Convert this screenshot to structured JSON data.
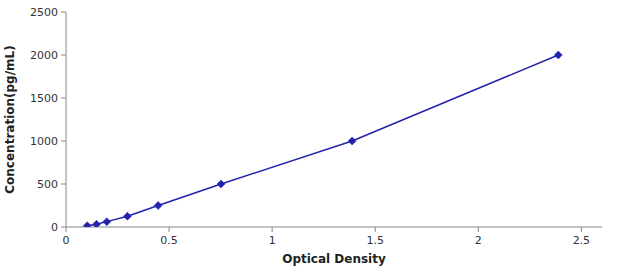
{
  "chart_data": {
    "type": "line",
    "x": [
      0.103,
      0.148,
      0.198,
      0.298,
      0.447,
      0.752,
      1.388,
      2.388
    ],
    "values": [
      15.625,
      31.25,
      62.5,
      125.0,
      250.0,
      500.0,
      1000.0,
      2000.0
    ],
    "color": "#2222AA",
    "marker": "diamond",
    "xlabel": "Optical Density",
    "ylabel": "Concentration(pg/mL)",
    "xlim": [
      0,
      2.6
    ],
    "ylim": [
      0,
      2500
    ],
    "xticks": [
      0,
      0.5,
      1,
      1.5,
      2,
      2.5
    ],
    "yticks": [
      0,
      500,
      1000,
      1500,
      2000,
      2500
    ],
    "grid": false
  }
}
